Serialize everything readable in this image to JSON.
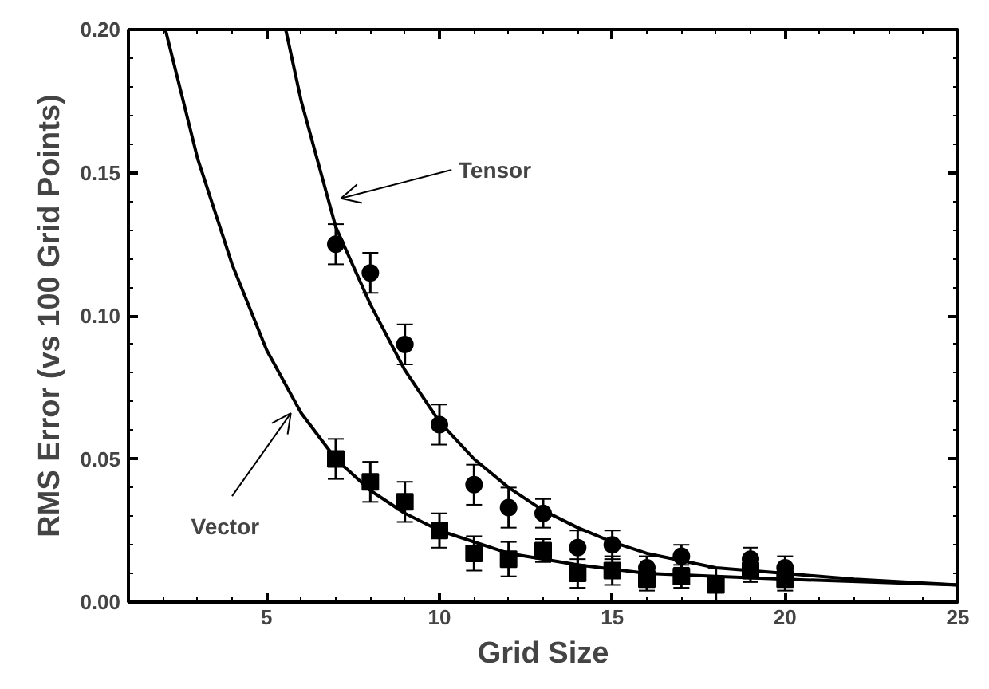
{
  "chart_data": {
    "type": "scatter",
    "xlabel": "Grid Size",
    "ylabel": "RMS Error (vs 100 Grid Points)",
    "xlim": [
      1,
      25
    ],
    "ylim": [
      0,
      0.2
    ],
    "xticks": [
      5,
      10,
      15,
      20,
      25
    ],
    "yticks": [
      {
        "value": 0,
        "label": "0.00"
      },
      {
        "value": 0.05,
        "label": "0.05"
      },
      {
        "value": 0.1,
        "label": "0.10"
      },
      {
        "value": 0.15,
        "label": "0.15"
      },
      {
        "value": 0.2,
        "label": "0.20"
      }
    ],
    "grid": false,
    "series": [
      {
        "marker": "circle",
        "color": "#000000",
        "x": [
          7,
          8,
          9,
          10,
          11,
          12,
          13,
          14,
          15,
          16,
          17,
          19,
          20
        ],
        "values": [
          0.125,
          0.115,
          0.09,
          0.062,
          0.041,
          0.033,
          0.031,
          0.019,
          0.02,
          0.012,
          0.016,
          0.015,
          0.012
        ],
        "errors": [
          0.007,
          0.007,
          0.007,
          0.007,
          0.007,
          0.007,
          0.005,
          0.006,
          0.005,
          0.004,
          0.004,
          0.004,
          0.004
        ]
      },
      {
        "marker": "square",
        "color": "#000000",
        "x": [
          7,
          8,
          9,
          10,
          11,
          12,
          13,
          14,
          15,
          16,
          17,
          18,
          19,
          20
        ],
        "values": [
          0.05,
          0.042,
          0.035,
          0.025,
          0.017,
          0.015,
          0.018,
          0.01,
          0.011,
          0.008,
          0.009,
          0.006,
          0.011,
          0.008
        ],
        "errors": [
          0.007,
          0.007,
          0.007,
          0.006,
          0.006,
          0.006,
          0.004,
          0.005,
          0.005,
          0.004,
          0.004,
          0.006,
          0.004,
          0.004
        ]
      },
      {
        "type": "line",
        "color": "#000000",
        "line_style": "solid",
        "x": [
          2.07,
          3,
          4,
          5,
          6,
          7,
          8,
          9,
          10,
          12,
          14,
          16,
          18,
          20,
          25
        ],
        "values": [
          0.2,
          0.155,
          0.118,
          0.088,
          0.066,
          0.05,
          0.039,
          0.031,
          0.025,
          0.017,
          0.013,
          0.01,
          0.009,
          0.008,
          0.006
        ]
      },
      {
        "type": "line",
        "color": "#000000",
        "line_style": "solid",
        "x": [
          5.55,
          6,
          7,
          8,
          9,
          10,
          11,
          12,
          13,
          14,
          15,
          16,
          18,
          20,
          22,
          25
        ],
        "values": [
          0.2,
          0.175,
          0.131,
          0.104,
          0.081,
          0.063,
          0.05,
          0.04,
          0.032,
          0.026,
          0.021,
          0.017,
          0.012,
          0.01,
          0.008,
          0.006
        ]
      }
    ],
    "annotations": [
      "Tensor",
      "Vector"
    ]
  }
}
